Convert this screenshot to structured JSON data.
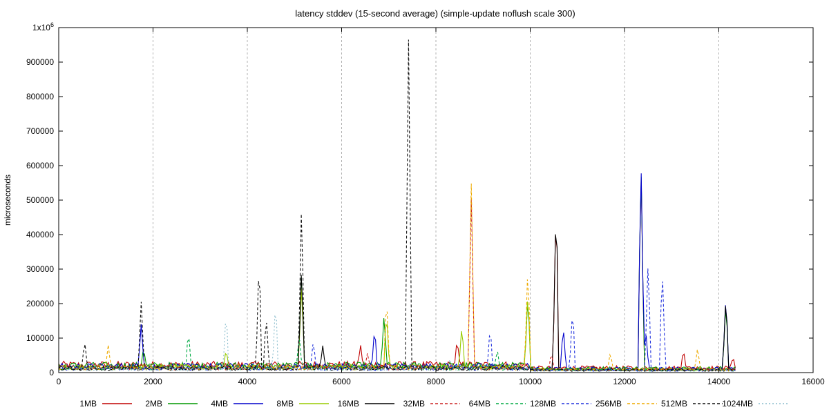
{
  "chart_data": {
    "type": "line",
    "title": "latency stddev (15-second average) (simple-update noflush scale 300)",
    "xlabel": "",
    "ylabel": "microseconds",
    "xlim": [
      0,
      16000
    ],
    "ylim": [
      0,
      1000000
    ],
    "x_ticks": [
      0,
      2000,
      4000,
      6000,
      8000,
      10000,
      12000,
      14000,
      16000
    ],
    "y_ticks": [
      0,
      100000,
      200000,
      300000,
      400000,
      500000,
      600000,
      700000,
      800000,
      900000
    ],
    "y_top_label": {
      "base": "1x10",
      "exp": "6"
    },
    "grid": "vertical dashed",
    "legend_position": "bottom",
    "x_end": 14350,
    "series": [
      {
        "name": "1MB",
        "color": "#c00000",
        "dash": "solid",
        "baseline": 22000,
        "spikes": [
          [
            6400,
            85000
          ],
          [
            8450,
            100000
          ],
          [
            10550,
            505000
          ],
          [
            12350,
            600000
          ],
          [
            13250,
            68000
          ],
          [
            14300,
            48000
          ]
        ]
      },
      {
        "name": "2MB",
        "color": "#009900",
        "dash": "solid",
        "baseline": 20000,
        "spikes": [
          [
            1800,
            75000
          ],
          [
            5150,
            300000
          ],
          [
            6900,
            170000
          ],
          [
            9950,
            230000
          ],
          [
            12350,
            610000
          ],
          [
            14150,
            210000
          ]
        ]
      },
      {
        "name": "4MB",
        "color": "#0000cc",
        "dash": "solid",
        "baseline": 18000,
        "spikes": [
          [
            1750,
            140000
          ],
          [
            6700,
            133000
          ],
          [
            10700,
            135000
          ],
          [
            12350,
            622000
          ],
          [
            12450,
            125000
          ],
          [
            14150,
            228000
          ]
        ]
      },
      {
        "name": "8MB",
        "color": "#99cc00",
        "dash": "solid",
        "baseline": 16000,
        "spikes": [
          [
            3550,
            70000
          ],
          [
            5150,
            260000
          ],
          [
            6950,
            180000
          ],
          [
            8550,
            140000
          ],
          [
            9950,
            240000
          ]
        ]
      },
      {
        "name": "16MB",
        "color": "#000000",
        "dash": "solid",
        "baseline": 13000,
        "spikes": [
          [
            5150,
            305000
          ],
          [
            5600,
            78000
          ],
          [
            10550,
            510000
          ],
          [
            14150,
            225000
          ]
        ]
      },
      {
        "name": "32MB",
        "color": "#cc2222",
        "dash": "dashed",
        "baseline": 15000,
        "spikes": [
          [
            6550,
            60000
          ],
          [
            8750,
            505000
          ],
          [
            10450,
            60000
          ]
        ]
      },
      {
        "name": "64MB",
        "color": "#00aa44",
        "dash": "dashed",
        "baseline": 14000,
        "spikes": [
          [
            2750,
            125000
          ],
          [
            5100,
            110000
          ],
          [
            9300,
            70000
          ]
        ]
      },
      {
        "name": "128MB",
        "color": "#2233dd",
        "dash": "dashed",
        "baseline": 12000,
        "spikes": [
          [
            5400,
            95000
          ],
          [
            9150,
            135000
          ],
          [
            10900,
            192000
          ],
          [
            12500,
            325000
          ],
          [
            12800,
            308000
          ]
        ]
      },
      {
        "name": "256MB",
        "color": "#eeaa00",
        "dash": "dashed",
        "baseline": 14000,
        "spikes": [
          [
            1050,
            80000
          ],
          [
            6950,
            225000
          ],
          [
            8750,
            548000
          ],
          [
            9950,
            315000
          ],
          [
            11700,
            60000
          ],
          [
            13550,
            72000
          ]
        ]
      },
      {
        "name": "512MB",
        "color": "#111111",
        "dash": "dashed",
        "baseline": 12000,
        "spikes": [
          [
            550,
            95000
          ],
          [
            1750,
            205000
          ],
          [
            4250,
            338000
          ],
          [
            4400,
            168000
          ],
          [
            5150,
            495000
          ],
          [
            7420,
            965000
          ]
        ]
      },
      {
        "name": "1024MB",
        "color": "#88bbcc",
        "dash": "dotted",
        "baseline": 10000,
        "spikes": [
          [
            3550,
            180000
          ],
          [
            4600,
            212000
          ],
          [
            8300,
            40000
          ]
        ]
      }
    ]
  }
}
